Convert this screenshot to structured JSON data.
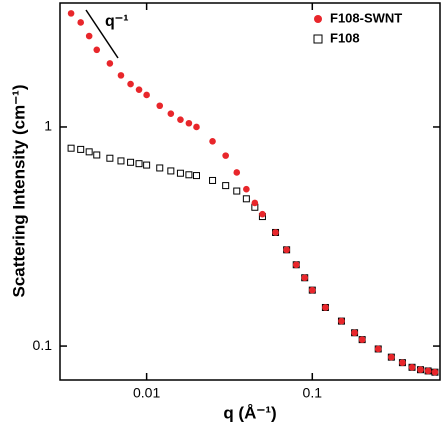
{
  "chart_data": {
    "type": "scatter",
    "xlabel": "q (Å⁻¹)",
    "ylabel": "Scattering Intensity (cm⁻¹)",
    "annotation": "q⁻¹",
    "xscale": "log",
    "yscale": "log",
    "xlim": [
      0.003,
      0.59
    ],
    "ylim": [
      0.07,
      3.68
    ],
    "xticks": [
      0.01,
      0.1
    ],
    "yticks": [
      0.1,
      1
    ],
    "legend": "upper right",
    "x": [
      0.0035,
      0.004,
      0.0045,
      0.005,
      0.006,
      0.007,
      0.008,
      0.009,
      0.01,
      0.012,
      0.014,
      0.016,
      0.018,
      0.02,
      0.025,
      0.03,
      0.035,
      0.04,
      0.045,
      0.05,
      0.06,
      0.07,
      0.08,
      0.09,
      0.1,
      0.12,
      0.15,
      0.18,
      0.2,
      0.25,
      0.3,
      0.35,
      0.4,
      0.45,
      0.5,
      0.55
    ],
    "series": [
      {
        "name": "F108-SWNT",
        "color": "#e8262b",
        "marker": "circle",
        "values": [
          3.3,
          3.0,
          2.6,
          2.25,
          1.95,
          1.72,
          1.57,
          1.48,
          1.4,
          1.25,
          1.15,
          1.08,
          1.04,
          1.0,
          0.86,
          0.74,
          0.62,
          0.52,
          0.45,
          0.4,
          0.33,
          0.275,
          0.235,
          0.205,
          0.18,
          0.15,
          0.13,
          0.115,
          0.107,
          0.097,
          0.089,
          0.084,
          0.08,
          0.078,
          0.077,
          0.076
        ]
      },
      {
        "name": "F108",
        "color": "#000000",
        "marker": "open-square",
        "values": [
          0.8,
          0.79,
          0.77,
          0.745,
          0.72,
          0.7,
          0.69,
          0.68,
          0.67,
          0.65,
          0.63,
          0.615,
          0.605,
          0.6,
          0.57,
          0.54,
          0.51,
          0.47,
          0.43,
          0.39,
          0.33,
          0.275,
          0.235,
          0.205,
          0.18,
          0.15,
          0.13,
          0.115,
          0.107,
          0.097,
          0.089,
          0.084,
          0.08,
          0.078,
          0.077,
          0.076
        ]
      }
    ]
  }
}
